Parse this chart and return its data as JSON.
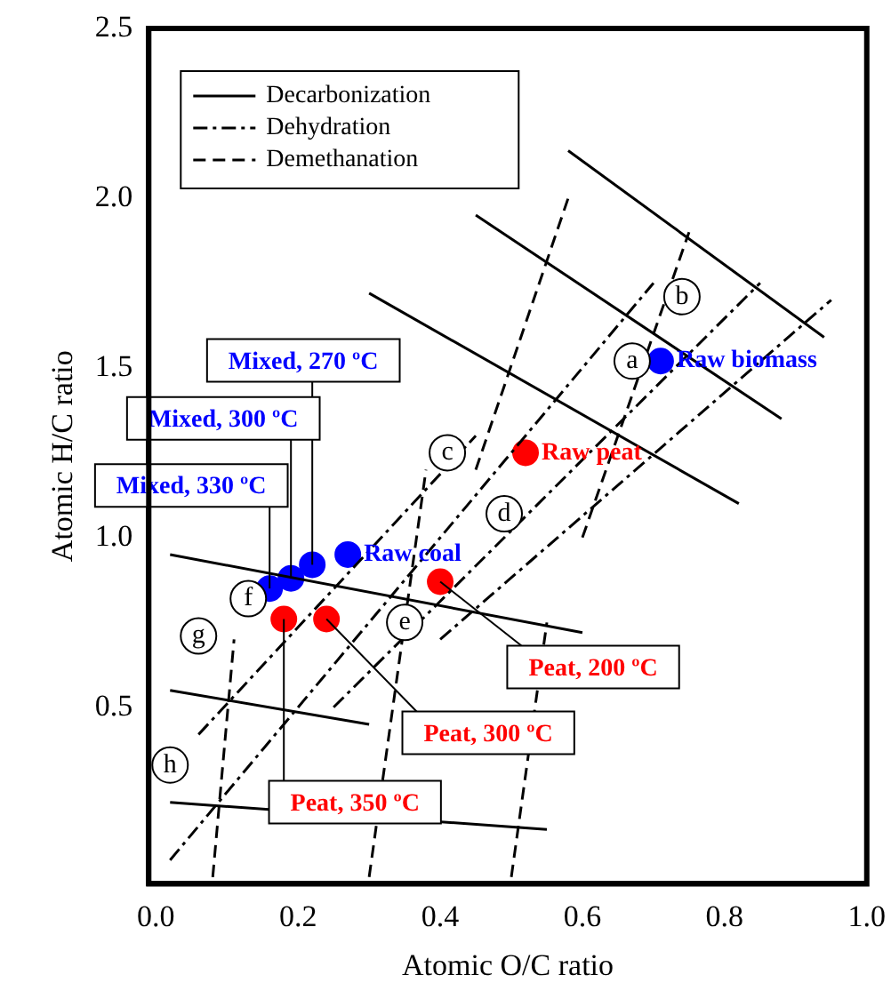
{
  "chart_data": {
    "type": "scatter",
    "xlabel": "Atomic O/C ratio",
    "ylabel": "Atomic H/C ratio",
    "xlim": [
      -0.01,
      1.0
    ],
    "ylim": [
      -0.02,
      2.5
    ],
    "xticks": [
      {
        "value": 0.0,
        "label": "0.0"
      },
      {
        "value": 0.2,
        "label": "0.2"
      },
      {
        "value": 0.4,
        "label": "0.4"
      },
      {
        "value": 0.6,
        "label": "0.6"
      },
      {
        "value": 0.8,
        "label": "0.8"
      },
      {
        "value": 1.0,
        "label": "1.0"
      }
    ],
    "yticks": [
      {
        "value": 0.5,
        "label": "0.5"
      },
      {
        "value": 1.0,
        "label": "1.0"
      },
      {
        "value": 1.5,
        "label": "1.5"
      },
      {
        "value": 2.0,
        "label": "2.0"
      },
      {
        "value": 2.5,
        "label": "2.5"
      }
    ],
    "grid": false,
    "legend": "top left",
    "series": [
      {
        "name": "Decarbonization",
        "type": "line",
        "line_style": "solid",
        "color": "#000000",
        "x": [
          0.58,
          0.94,
          null,
          0.45,
          0.88,
          null,
          0.3,
          0.82,
          null,
          0.02,
          0.6,
          null,
          0.02,
          0.3,
          null,
          0.02,
          0.55
        ],
        "values": [
          2.14,
          1.59,
          null,
          1.95,
          1.35,
          null,
          1.72,
          1.1,
          null,
          0.95,
          0.72,
          null,
          0.55,
          0.45,
          null,
          0.22,
          0.14
        ]
      },
      {
        "name": "Dehydration",
        "type": "line",
        "line_style": "dashdot",
        "color": "#000000",
        "x": [
          0.02,
          0.7,
          null,
          0.25,
          0.85,
          null,
          0.4,
          0.95,
          null,
          0.06,
          0.45
        ],
        "values": [
          0.05,
          1.75,
          null,
          0.5,
          1.75,
          null,
          0.7,
          1.7,
          null,
          0.42,
          1.3
        ]
      },
      {
        "name": "Demethanation",
        "type": "line",
        "line_style": "dashed",
        "color": "#000000",
        "x": [
          0.5,
          0.55,
          null,
          0.3,
          0.38,
          null,
          0.08,
          0.11,
          null,
          0.6,
          0.75,
          null,
          0.45,
          0.58
        ],
        "values": [
          0.0,
          0.75,
          null,
          0.0,
          1.2,
          null,
          0.0,
          0.7,
          null,
          1.0,
          1.9,
          null,
          1.2,
          2.0
        ]
      },
      {
        "marker": "circle",
        "color": "#0000ff",
        "x": [
          0.71,
          0.27,
          0.22,
          0.19,
          0.16
        ],
        "values": [
          1.52,
          0.95,
          0.92,
          0.88,
          0.85
        ]
      },
      {
        "marker": "circle",
        "color": "#ff0000",
        "x": [
          0.52,
          0.4,
          0.24,
          0.18
        ],
        "values": [
          1.25,
          0.87,
          0.76,
          0.76
        ]
      }
    ],
    "annotations": [
      {
        "text": "Raw biomass",
        "x": 0.71,
        "y": 1.52
      },
      {
        "text": "Raw peat",
        "x": 0.52,
        "y": 1.25
      },
      {
        "text": "Raw coal",
        "x": 0.27,
        "y": 0.95
      },
      {
        "text": "Mixed, 270 ºC",
        "x": 0.22,
        "y": 0.92
      },
      {
        "text": "Mixed, 300 ºC",
        "x": 0.19,
        "y": 0.88
      },
      {
        "text": "Mixed, 330 ºC",
        "x": 0.16,
        "y": 0.85
      },
      {
        "text": "Peat, 200 ºC",
        "x": 0.4,
        "y": 0.87
      },
      {
        "text": "Peat, 300 ºC",
        "x": 0.24,
        "y": 0.76
      },
      {
        "text": "Peat, 350 ºC",
        "x": 0.18,
        "y": 0.76
      },
      {
        "text": "a",
        "x": 0.67,
        "y": 1.52
      },
      {
        "text": "b",
        "x": 0.74,
        "y": 1.71
      },
      {
        "text": "c",
        "x": 0.41,
        "y": 1.25
      },
      {
        "text": "d",
        "x": 0.49,
        "y": 1.07
      },
      {
        "text": "e",
        "x": 0.35,
        "y": 0.75
      },
      {
        "text": "f",
        "x": 0.13,
        "y": 0.82
      },
      {
        "text": "g",
        "x": 0.06,
        "y": 0.71
      },
      {
        "text": "h",
        "x": 0.02,
        "y": 0.33
      }
    ]
  }
}
